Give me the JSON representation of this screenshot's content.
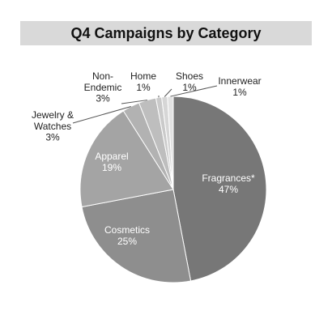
{
  "chart_data": {
    "type": "pie",
    "title": "Q4 Campaigns by Category",
    "slices": [
      {
        "label": "Fragrances*",
        "value": 47,
        "pct_label": "47%",
        "color": "#777777",
        "text_color": "#ffffff"
      },
      {
        "label": "Cosmetics",
        "value": 25,
        "pct_label": "25%",
        "color": "#8e8e8e",
        "text_color": "#ffffff"
      },
      {
        "label": "Apparel",
        "value": 19,
        "pct_label": "19%",
        "color": "#a4a4a4",
        "text_color": "#ffffff"
      },
      {
        "label": "Jewelry & Watches",
        "value": 3,
        "pct_label": "3%",
        "color": "#b2b2b2",
        "text_color": "#222222"
      },
      {
        "label": "Non-Endemic",
        "value": 3,
        "pct_label": "3%",
        "color": "#bebebe",
        "text_color": "#222222"
      },
      {
        "label": "Home",
        "value": 1,
        "pct_label": "1%",
        "color": "#cacaca",
        "text_color": "#222222"
      },
      {
        "label": "Shoes",
        "value": 1,
        "pct_label": "1%",
        "color": "#d6d6d6",
        "text_color": "#222222"
      },
      {
        "label": "Innerwear",
        "value": 1,
        "pct_label": "1%",
        "color": "#e2e2e2",
        "text_color": "#222222"
      }
    ]
  }
}
